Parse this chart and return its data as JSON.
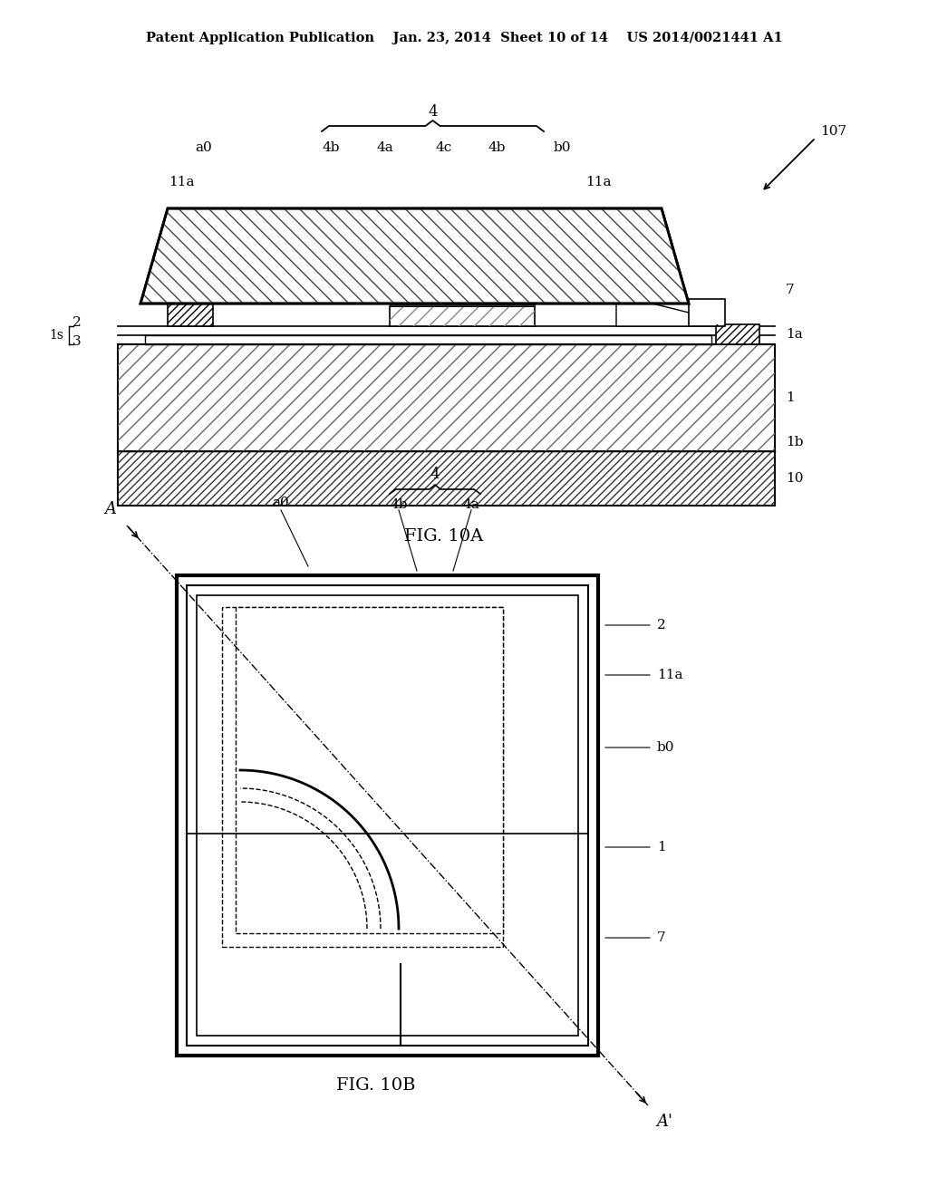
{
  "bg_color": "#ffffff",
  "line_color": "#000000",
  "header_text": "Patent Application Publication    Jan. 23, 2014  Sheet 10 of 14    US 2014/0021441 A1",
  "fig10a_label": "FIG. 10A",
  "fig10b_label": "FIG. 10B"
}
